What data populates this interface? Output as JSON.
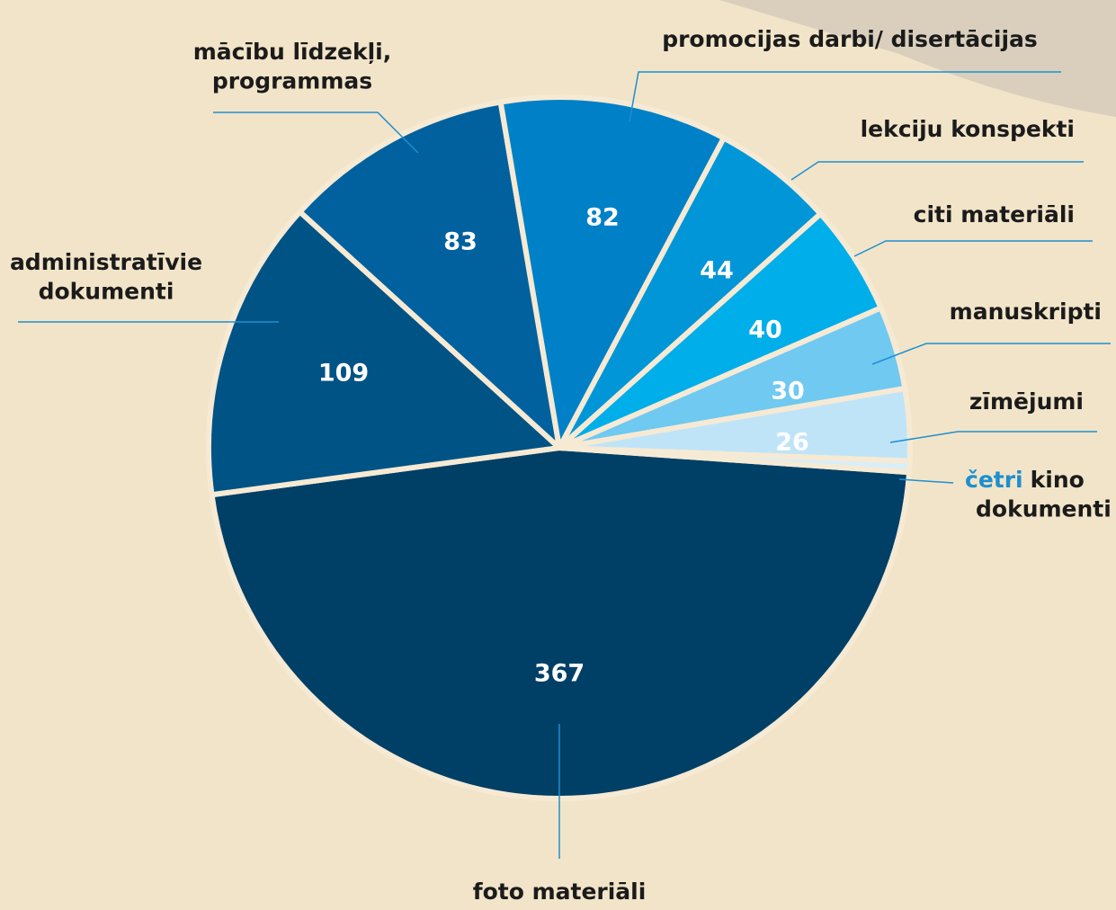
{
  "chart_data": {
    "type": "pie",
    "categories": [
      "foto materiāli",
      "administratīvie\ndokumenti",
      "mācību līdzekļi,\nprogrammas",
      "promocijas darbi/ disertācijas",
      "lekciju konspekti",
      "citi materiāli",
      "manuskripti",
      "zīmējumi",
      "kino\ndokumenti"
    ],
    "values": [
      367,
      109,
      83,
      82,
      44,
      40,
      30,
      26,
      4
    ],
    "value_labels": [
      "367",
      "109",
      "83",
      "82",
      "44",
      "40",
      "30",
      "26",
      "četri"
    ],
    "colors": [
      "#003f66",
      "#005385",
      "#00619e",
      "#0080c6",
      "#0096d8",
      "#00aeea",
      "#6fc9f1",
      "#c0e4f7",
      "#d9eef9"
    ]
  }
}
